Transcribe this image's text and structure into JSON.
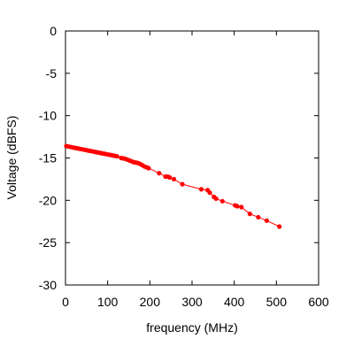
{
  "chart_data": {
    "type": "line",
    "title": "",
    "xlabel": "frequency (MHz)",
    "ylabel": "Voltage (dBFS)",
    "xlim": [
      0,
      600
    ],
    "ylim": [
      -30,
      0
    ],
    "xticks": [
      0,
      100,
      200,
      300,
      400,
      500,
      600
    ],
    "yticks": [
      0,
      -5,
      -10,
      -15,
      -20,
      -25,
      -30
    ],
    "grid": false,
    "legend": "none",
    "marker": "filled-circle",
    "colors": {
      "series": "#ff0000",
      "axes": "#000000",
      "background": "#ffffff"
    },
    "series": [
      {
        "x": [
          2,
          7,
          12,
          17,
          22,
          27,
          32,
          37,
          42,
          47,
          52,
          57,
          62,
          67,
          72,
          77,
          82,
          87,
          92,
          97,
          102,
          107,
          112,
          117,
          122,
          132,
          137,
          142,
          147,
          152,
          157,
          162,
          167,
          172,
          177,
          182,
          187,
          192,
          197,
          222,
          237,
          242,
          247,
          257,
          277,
          322,
          337,
          342,
          352,
          357,
          372,
          402,
          407,
          417,
          437,
          457,
          477,
          507
        ],
        "y": [
          -13.6,
          -13.65,
          -13.7,
          -13.75,
          -13.8,
          -13.85,
          -13.9,
          -13.95,
          -14.0,
          -14.05,
          -14.1,
          -14.15,
          -14.2,
          -14.25,
          -14.3,
          -14.35,
          -14.4,
          -14.45,
          -14.5,
          -14.55,
          -14.6,
          -14.65,
          -14.7,
          -14.75,
          -14.8,
          -15.0,
          -15.05,
          -15.1,
          -15.2,
          -15.3,
          -15.4,
          -15.5,
          -15.55,
          -15.6,
          -15.7,
          -15.85,
          -16.0,
          -16.1,
          -16.2,
          -16.8,
          -17.2,
          -17.2,
          -17.3,
          -17.5,
          -18.1,
          -18.7,
          -18.8,
          -19.1,
          -19.6,
          -19.8,
          -20.1,
          -20.6,
          -20.7,
          -20.8,
          -21.6,
          -22.0,
          -22.4,
          -23.1
        ]
      }
    ]
  }
}
